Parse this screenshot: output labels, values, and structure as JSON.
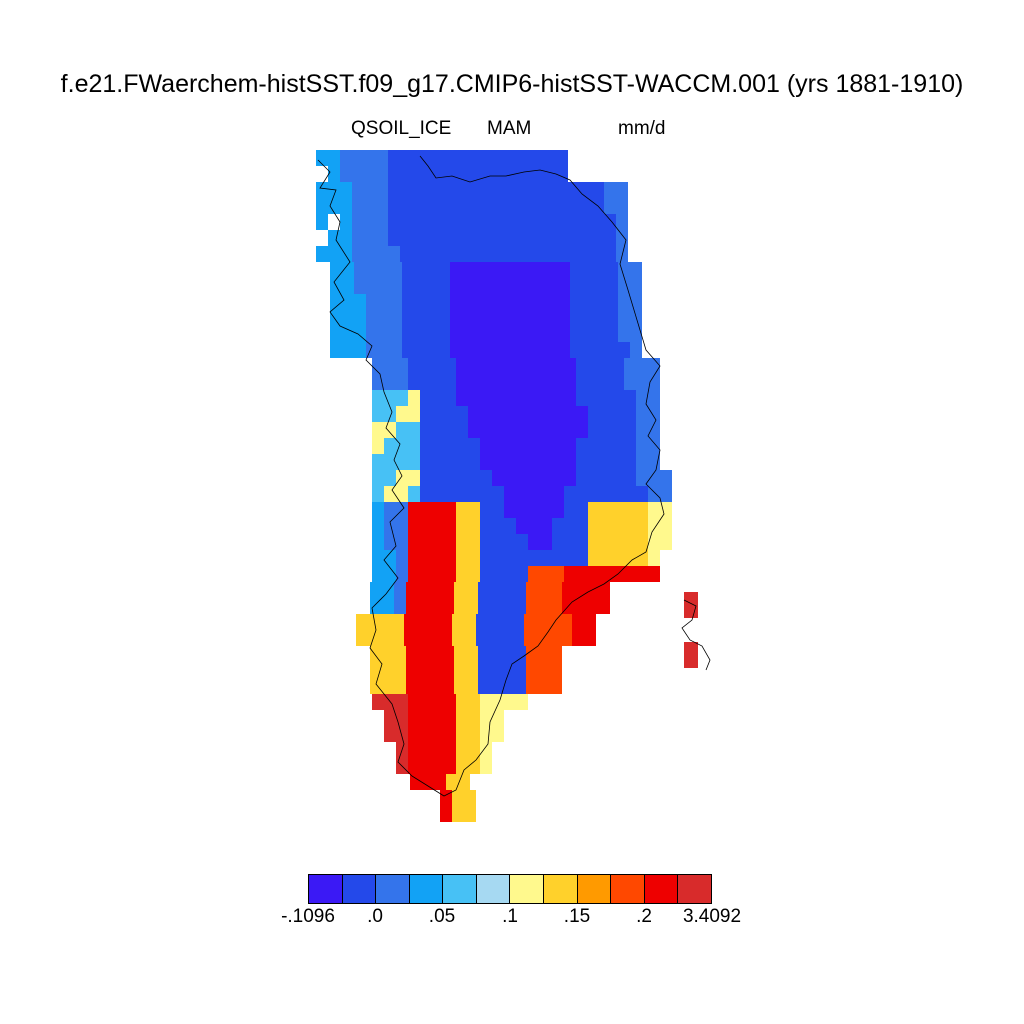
{
  "title": "f.e21.FWaerchem-histSST.f09_g17.CMIP6-histSST-WACCM.001 (yrs 1881-1910)",
  "variable": "QSOIL_ICE",
  "season": "MAM",
  "units": "mm/d",
  "colorbar": {
    "colors": [
      "#3b19f5",
      "#2449ea",
      "#3474eb",
      "#12a2f5",
      "#47c1f5",
      "#a6d9f2",
      "#fff98d",
      "#ffd12b",
      "#ff9a00",
      "#ff4800",
      "#ee0000",
      "#d82b2b"
    ],
    "labels": [
      "-.1096",
      ".0",
      ".05",
      ".1",
      ".15",
      ".2",
      "3.4092"
    ]
  },
  "map_data": {
    "type": "gridded field",
    "region": "Greenland",
    "min": -0.1096,
    "max": 3.4092
  }
}
